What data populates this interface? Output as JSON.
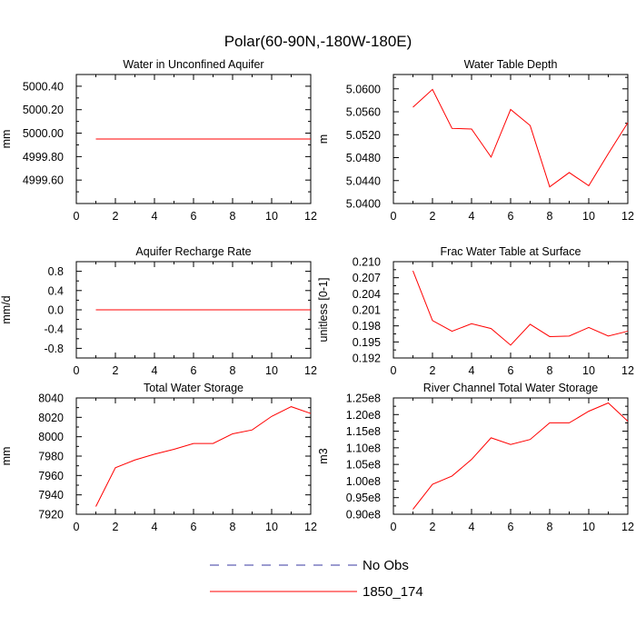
{
  "figure": {
    "title": "Polar(60-90N,-180W-180E)"
  },
  "legend": {
    "items": [
      {
        "label": "No Obs",
        "color": "#3a3aa0",
        "dash": true
      },
      {
        "label": "1850_174",
        "color": "#ff0000",
        "dash": false
      }
    ]
  },
  "chart_data": [
    {
      "type": "line",
      "title": "Water in Unconfined Aquifer",
      "ylabel": "mm",
      "x": [
        1,
        2,
        3,
        4,
        5,
        6,
        7,
        8,
        9,
        10,
        11,
        12
      ],
      "xlim": [
        0,
        12
      ],
      "xticks": [
        0,
        2,
        4,
        6,
        8,
        10,
        12
      ],
      "ylim": [
        4999.4,
        5000.5
      ],
      "yticks": [
        4999.6,
        4999.8,
        5000.0,
        5000.2,
        5000.4
      ],
      "ytick_labels": [
        "4999.60",
        "4999.80",
        "5000.00",
        "5000.20",
        "5000.40"
      ],
      "series": [
        {
          "name": "1850_174",
          "color": "#ff0000",
          "values": [
            4999.95,
            4999.95,
            4999.95,
            4999.95,
            4999.95,
            4999.95,
            4999.95,
            4999.95,
            4999.95,
            4999.95,
            4999.95,
            4999.95
          ]
        }
      ]
    },
    {
      "type": "line",
      "title": "Water Table Depth",
      "ylabel": "m",
      "x": [
        1,
        2,
        3,
        4,
        5,
        6,
        7,
        8,
        9,
        10,
        11,
        12
      ],
      "xlim": [
        0,
        12
      ],
      "xticks": [
        0,
        2,
        4,
        6,
        8,
        10,
        12
      ],
      "ylim": [
        5.04,
        5.0625
      ],
      "yticks": [
        5.04,
        5.044,
        5.048,
        5.052,
        5.056,
        5.06
      ],
      "ytick_labels": [
        "5.0400",
        "5.0440",
        "5.0480",
        "5.0520",
        "5.0560",
        "5.0600"
      ],
      "series": [
        {
          "name": "1850_174",
          "color": "#ff0000",
          "values": [
            5.0568,
            5.0599,
            5.0531,
            5.053,
            5.0481,
            5.0564,
            5.0536,
            5.0429,
            5.0454,
            5.0431,
            5.0487,
            5.0541
          ]
        }
      ]
    },
    {
      "type": "line",
      "title": "Aquifer Recharge Rate",
      "ylabel": "mm/d",
      "x": [
        1,
        2,
        3,
        4,
        5,
        6,
        7,
        8,
        9,
        10,
        11,
        12
      ],
      "xlim": [
        0,
        12
      ],
      "xticks": [
        0,
        2,
        4,
        6,
        8,
        10,
        12
      ],
      "ylim": [
        -1.0,
        1.0
      ],
      "yticks": [
        -0.8,
        -0.4,
        0.0,
        0.4,
        0.8
      ],
      "ytick_labels": [
        "-0.8",
        "-0.4",
        "0.0",
        "0.4",
        "0.8"
      ],
      "series": [
        {
          "name": "1850_174",
          "color": "#ff0000",
          "values": [
            0,
            0,
            0,
            0,
            0,
            0,
            0,
            0,
            0,
            0,
            0,
            0
          ]
        }
      ]
    },
    {
      "type": "line",
      "title": "Frac Water Table at Surface",
      "ylabel": "unitless [0-1]",
      "x": [
        1,
        2,
        3,
        4,
        5,
        6,
        7,
        8,
        9,
        10,
        11,
        12
      ],
      "xlim": [
        0,
        12
      ],
      "xticks": [
        0,
        2,
        4,
        6,
        8,
        10,
        12
      ],
      "ylim": [
        0.192,
        0.21
      ],
      "yticks": [
        0.192,
        0.195,
        0.198,
        0.201,
        0.204,
        0.207,
        0.21
      ],
      "ytick_labels": [
        "0.192",
        "0.195",
        "0.198",
        "0.201",
        "0.204",
        "0.207",
        "0.210"
      ],
      "series": [
        {
          "name": "1850_174",
          "color": "#ff0000",
          "values": [
            0.2083,
            0.199,
            0.197,
            0.1984,
            0.1975,
            0.1944,
            0.1983,
            0.196,
            0.1961,
            0.1977,
            0.1961,
            0.197
          ]
        }
      ]
    },
    {
      "type": "line",
      "title": "Total Water Storage",
      "ylabel": "mm",
      "x": [
        1,
        2,
        3,
        4,
        5,
        6,
        7,
        8,
        9,
        10,
        11,
        12
      ],
      "xlim": [
        0,
        12
      ],
      "xticks": [
        0,
        2,
        4,
        6,
        8,
        10,
        12
      ],
      "ylim": [
        7920,
        8040
      ],
      "yticks": [
        7920,
        7940,
        7960,
        7980,
        8000,
        8020,
        8040
      ],
      "ytick_labels": [
        "7920",
        "7940",
        "7960",
        "7980",
        "8000",
        "8020",
        "8040"
      ],
      "series": [
        {
          "name": "1850_174",
          "color": "#ff0000",
          "values": [
            7928,
            7968,
            7976,
            7982,
            7987,
            7993,
            7993,
            8003,
            8007,
            8021,
            8031,
            8024
          ]
        }
      ]
    },
    {
      "type": "line",
      "title": "River Channel Total Water Storage",
      "ylabel": "m3",
      "x": [
        1,
        2,
        3,
        4,
        5,
        6,
        7,
        8,
        9,
        10,
        11,
        12
      ],
      "xlim": [
        0,
        12
      ],
      "xticks": [
        0,
        2,
        4,
        6,
        8,
        10,
        12
      ],
      "ylim": [
        90000000,
        125000000
      ],
      "yticks": [
        90000000,
        95000000,
        100000000,
        105000000,
        110000000,
        115000000,
        120000000,
        125000000
      ],
      "ytick_labels": [
        "0.90e8",
        "0.95e8",
        "1.00e8",
        "1.05e8",
        "1.10e8",
        "1.15e8",
        "1.20e8",
        "1.25e8"
      ],
      "series": [
        {
          "name": "1850_174",
          "color": "#ff0000",
          "values": [
            91500000,
            99000000,
            101500000,
            106500000,
            113000000,
            111000000,
            112500000,
            117500000,
            117500000,
            121000000,
            123500000,
            118000000
          ]
        }
      ]
    }
  ]
}
